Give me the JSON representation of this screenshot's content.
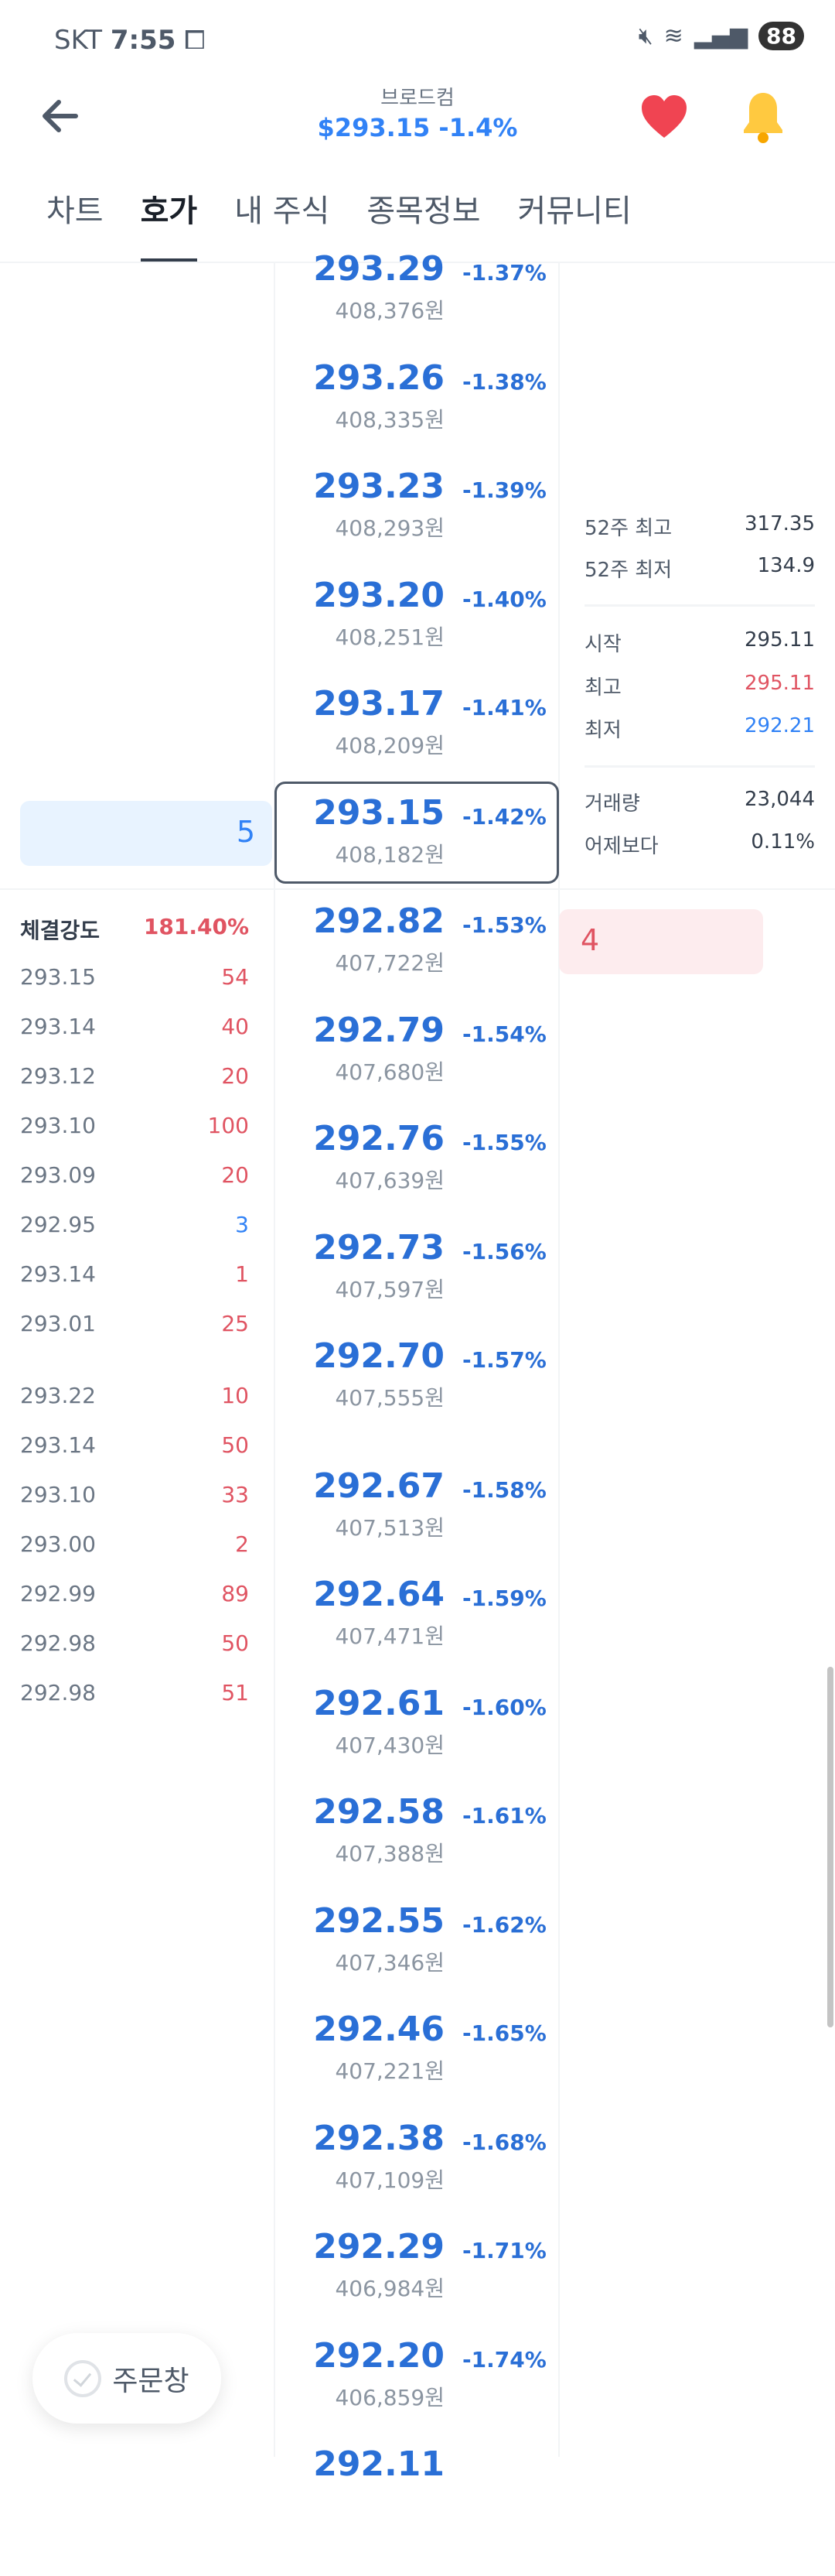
{
  "status_bar": {
    "carrier": "SKT",
    "time": "7:55",
    "battery": "88"
  },
  "header": {
    "name": "브로드컴",
    "price": "$293.15 -1.4%"
  },
  "tabs": [
    {
      "label": "차트"
    },
    {
      "label": "호가",
      "active": true
    },
    {
      "label": "내 주식"
    },
    {
      "label": "종목정보"
    },
    {
      "label": "커뮤니티"
    }
  ],
  "order_book": [
    {
      "price": "293.29",
      "change": "-1.37%",
      "krw": "408,376원"
    },
    {
      "price": "293.26",
      "change": "-1.38%",
      "krw": "408,335원"
    },
    {
      "price": "293.23",
      "change": "-1.39%",
      "krw": "408,293원"
    },
    {
      "price": "293.20",
      "change": "-1.40%",
      "krw": "408,251원"
    },
    {
      "price": "293.17",
      "change": "-1.41%",
      "krw": "408,209원"
    },
    {
      "price": "293.15",
      "change": "-1.42%",
      "krw": "408,182원",
      "current": true
    },
    {
      "price": "292.82",
      "change": "-1.53%",
      "krw": "407,722원"
    },
    {
      "price": "292.79",
      "change": "-1.54%",
      "krw": "407,680원"
    },
    {
      "price": "292.76",
      "change": "-1.55%",
      "krw": "407,639원"
    },
    {
      "price": "292.73",
      "change": "-1.56%",
      "krw": "407,597원"
    },
    {
      "price": "292.70",
      "change": "-1.57%",
      "krw": "407,555원"
    },
    {
      "price": "292.67",
      "change": "-1.58%",
      "krw": "407,513원"
    },
    {
      "price": "292.64",
      "change": "-1.59%",
      "krw": "407,471원"
    },
    {
      "price": "292.61",
      "change": "-1.60%",
      "krw": "407,430원"
    },
    {
      "price": "292.58",
      "change": "-1.61%",
      "krw": "407,388원"
    },
    {
      "price": "292.55",
      "change": "-1.62%",
      "krw": "407,346원"
    },
    {
      "price": "292.46",
      "change": "-1.65%",
      "krw": "407,221원"
    },
    {
      "price": "292.38",
      "change": "-1.68%",
      "krw": "407,109원"
    },
    {
      "price": "292.29",
      "change": "-1.71%",
      "krw": "406,984원"
    },
    {
      "price": "292.20",
      "change": "-1.74%",
      "krw": "406,859원"
    },
    {
      "price": "292.11",
      "change": "",
      "krw": ""
    }
  ],
  "ask_volume": "5",
  "bid_volume": "4",
  "stats": {
    "week52_high": {
      "label": "52주 최고",
      "value": "317.35"
    },
    "week52_low": {
      "label": "52주 최저",
      "value": "134.9"
    },
    "open": {
      "label": "시작",
      "value": "295.11"
    },
    "high": {
      "label": "최고",
      "value": "295.11"
    },
    "low": {
      "label": "최저",
      "value": "292.21"
    },
    "volume": {
      "label": "거래량",
      "value": "23,044"
    },
    "vs_yesterday": {
      "label": "어제보다",
      "value": "0.11%"
    }
  },
  "trade_strength": {
    "label": "체결강도",
    "value": "181.40%"
  },
  "trades": [
    {
      "price": "293.15",
      "qty": "54",
      "side": "buy"
    },
    {
      "price": "293.14",
      "qty": "40",
      "side": "buy"
    },
    {
      "price": "293.12",
      "qty": "20",
      "side": "buy"
    },
    {
      "price": "293.10",
      "qty": "100",
      "side": "buy"
    },
    {
      "price": "293.09",
      "qty": "20",
      "side": "buy"
    },
    {
      "price": "292.95",
      "qty": "3",
      "side": "sell"
    },
    {
      "price": "293.14",
      "qty": "1",
      "side": "buy"
    },
    {
      "price": "293.01",
      "qty": "25",
      "side": "buy"
    },
    {
      "price": "293.22",
      "qty": "10",
      "side": "buy"
    },
    {
      "price": "293.14",
      "qty": "50",
      "side": "buy"
    },
    {
      "price": "293.10",
      "qty": "33",
      "side": "buy"
    },
    {
      "price": "293.00",
      "qty": "2",
      "side": "buy"
    },
    {
      "price": "292.99",
      "qty": "89",
      "side": "buy"
    },
    {
      "price": "292.98",
      "qty": "50",
      "side": "buy"
    },
    {
      "price": "292.98",
      "qty": "51",
      "side": "buy"
    }
  ],
  "order_button": "주문창",
  "colors": {
    "blue": "#2a6fd6",
    "red": "#e05462",
    "heart": "#f04452",
    "bell": "#ffc940"
  }
}
